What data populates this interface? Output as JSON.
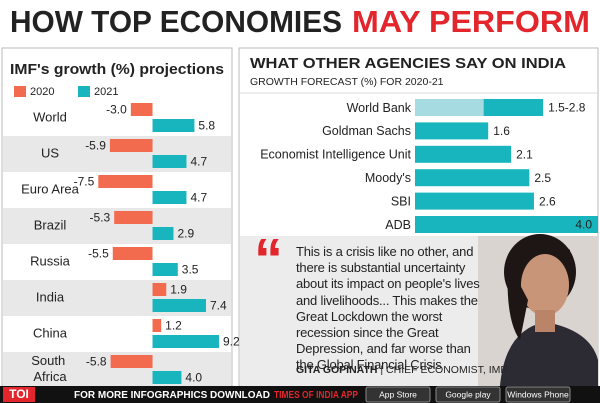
{
  "header": {
    "title_main": "HOW TOP ECONOMIES",
    "title_highlight": "MAY PERFORM"
  },
  "chart_data": [
    {
      "type": "bar",
      "orientation": "horizontal",
      "title": "IMF's growth (%) projections",
      "categories": [
        "World",
        "US",
        "Euro Area",
        "Brazil",
        "Russia",
        "India",
        "China",
        "South Africa"
      ],
      "series": [
        {
          "name": "2020",
          "color": "#f26b4f",
          "values": [
            -3,
            -5.9,
            -7.5,
            -5.3,
            -5.5,
            1.9,
            1.2,
            -5.8
          ],
          "value_labels": [
            "-3.0",
            "-5.9",
            "-7.5",
            "-5.3",
            "-5.5",
            "1.9",
            "1.2",
            "-5.8"
          ]
        },
        {
          "name": "2021",
          "color": "#19b5bf",
          "values": [
            5.8,
            4.7,
            4.7,
            2.9,
            3.5,
            7.4,
            9.2,
            4
          ],
          "value_labels": [
            "5.8",
            "4.7",
            "4.7",
            "2.9",
            "3.5",
            "7.4",
            "9.2",
            "4.0"
          ]
        }
      ],
      "xlim": [
        -20,
        11
      ],
      "legend": "top-left"
    },
    {
      "type": "bar",
      "orientation": "horizontal",
      "title": "WHAT OTHER AGENCIES SAY ON INDIA",
      "subtitle": "GROWTH FORECAST (%) FOR 2020-21",
      "categories": [
        "World Bank",
        "Goldman Sachs",
        "Economist Intelligence Unit",
        "Moody's",
        "SBI",
        "ADB"
      ],
      "values": [
        2.8,
        1.6,
        2.1,
        2.5,
        2.6,
        4
      ],
      "low": [
        1.5,
        null,
        null,
        null,
        null,
        null
      ],
      "value_labels": [
        "1.5-2.8",
        "1.6",
        "2.1",
        "2.5",
        "2.6",
        "4.0"
      ],
      "color": "#19b5bf",
      "low_color": "#a6dce1",
      "xlim": [
        0,
        4
      ]
    }
  ],
  "quote": {
    "text": "This is a crisis like no other, and there is substantial uncertainty about its impact on people's lives and livelihoods... This makes the Great Lockdown the worst recession since the Great Depression, and far worse than the Global Financial Crisis",
    "author": "GITA GOPINATH",
    "role": " | CHIEF ECONOMIST, IMF"
  },
  "footer": {
    "logo": "TOI",
    "text": "FOR MORE INFOGRAPHICS DOWNLOAD",
    "app": "TIMES OF INDIA APP",
    "badges": [
      "App Store",
      "Google play",
      "Windows Phone"
    ]
  }
}
